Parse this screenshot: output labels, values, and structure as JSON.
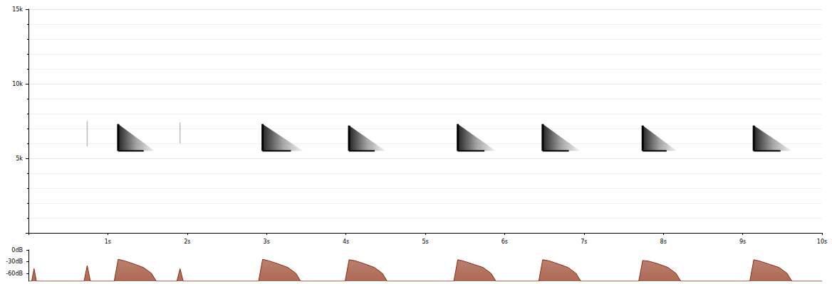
{
  "chart_data": [
    {
      "type": "spectrogram",
      "color": "#000000",
      "grid": true,
      "xlim": [
        0,
        10
      ],
      "xticks": [
        {
          "value": 1,
          "label": "1s"
        },
        {
          "value": 2,
          "label": "2s"
        },
        {
          "value": 3,
          "label": "3s"
        },
        {
          "value": 4,
          "label": "4s"
        },
        {
          "value": 5,
          "label": "5s"
        },
        {
          "value": 6,
          "label": "6s"
        },
        {
          "value": 7,
          "label": "7s"
        },
        {
          "value": 8,
          "label": "8s"
        },
        {
          "value": 9,
          "label": "9s"
        },
        {
          "value": 10,
          "label": "10s"
        }
      ],
      "ylim": [
        0,
        15000
      ],
      "yticks": [
        {
          "value": 5000,
          "label": "5k"
        },
        {
          "value": 10000,
          "label": "10k"
        },
        {
          "value": 15000,
          "label": "15k"
        }
      ],
      "calls": [
        {
          "start": 1.13,
          "end": 1.59,
          "low_freq": 5500,
          "high_freq": 7300
        },
        {
          "start": 2.95,
          "end": 3.46,
          "low_freq": 5500,
          "high_freq": 7300
        },
        {
          "start": 4.04,
          "end": 4.5,
          "low_freq": 5500,
          "high_freq": 7200
        },
        {
          "start": 5.41,
          "end": 5.89,
          "low_freq": 5500,
          "high_freq": 7300
        },
        {
          "start": 6.48,
          "end": 6.95,
          "low_freq": 5500,
          "high_freq": 7300
        },
        {
          "start": 7.74,
          "end": 8.17,
          "low_freq": 5500,
          "high_freq": 7200
        },
        {
          "start": 9.14,
          "end": 9.62,
          "low_freq": 5500,
          "high_freq": 7200
        }
      ],
      "clicks": [
        {
          "time": 0.74,
          "low_freq": 5800,
          "high_freq": 7500
        },
        {
          "time": 1.91,
          "low_freq": 6000,
          "high_freq": 7400
        }
      ]
    },
    {
      "type": "area",
      "color": "#8b2a0e",
      "tick_labels": "y",
      "xlim": [
        0,
        10
      ],
      "ylim": [
        -80,
        0
      ],
      "yticks": [
        {
          "value": 0,
          "label": "0dB"
        },
        {
          "value": -30,
          "label": "-30dB"
        },
        {
          "value": -60,
          "label": "-60dB"
        }
      ],
      "x": [
        0,
        0.04,
        0.07,
        0.1,
        0.7,
        0.74,
        0.78,
        1.08,
        1.13,
        1.21,
        1.33,
        1.45,
        1.55,
        1.61,
        1.87,
        1.91,
        1.95,
        2.9,
        2.95,
        3.03,
        3.15,
        3.27,
        3.37,
        3.43,
        3.99,
        4.04,
        4.12,
        4.24,
        4.36,
        4.46,
        4.52,
        5.36,
        5.41,
        5.49,
        5.61,
        5.73,
        5.83,
        5.89,
        6.43,
        6.48,
        6.56,
        6.68,
        6.8,
        6.9,
        6.96,
        7.69,
        7.74,
        7.82,
        7.94,
        8.06,
        8.16,
        8.22,
        9.09,
        9.14,
        9.22,
        9.34,
        9.46,
        9.56,
        9.62,
        10
      ],
      "values": [
        -80,
        -80,
        -48,
        -80,
        -80,
        -40,
        -80,
        -80,
        -24,
        -28,
        -36,
        -45,
        -60,
        -80,
        -80,
        -48,
        -80,
        -80,
        -24,
        -28,
        -36,
        -45,
        -60,
        -80,
        -80,
        -25,
        -28,
        -36,
        -45,
        -60,
        -80,
        -80,
        -25,
        -29,
        -37,
        -45,
        -60,
        -80,
        -80,
        -25,
        -28,
        -36,
        -45,
        -60,
        -80,
        -80,
        -27,
        -29,
        -36,
        -45,
        -60,
        -80,
        -80,
        -25,
        -29,
        -37,
        -45,
        -60,
        -80,
        -80
      ]
    }
  ]
}
